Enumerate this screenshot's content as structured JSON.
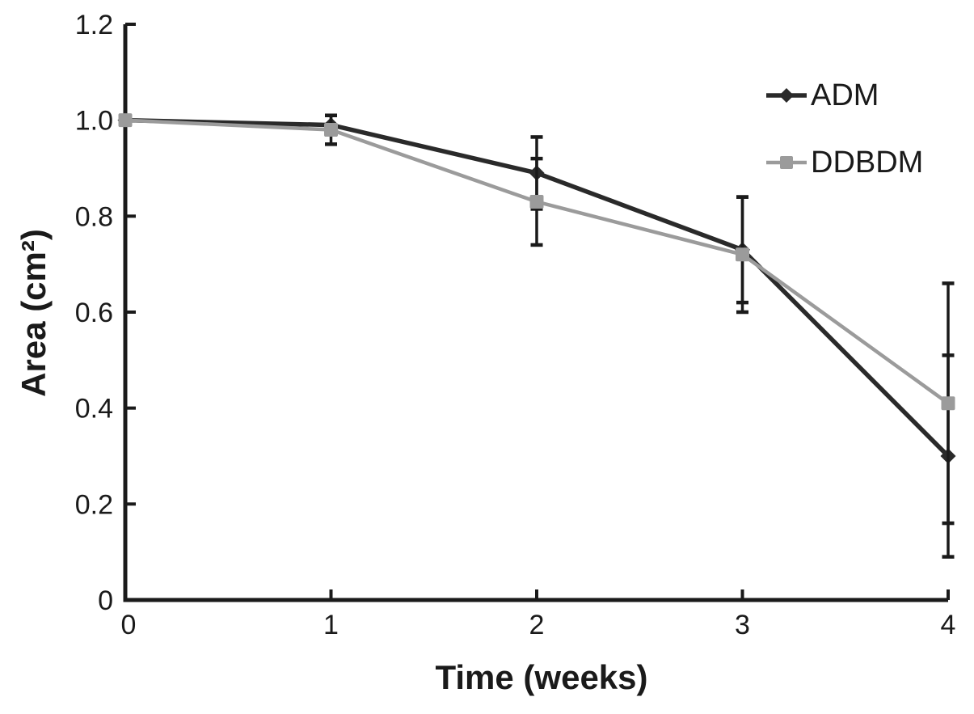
{
  "figure": {
    "background": "#ffffff",
    "text_color": "#1a1a1a"
  },
  "chart_data": {
    "type": "line",
    "title": "",
    "xlabel": "Time (weeks)",
    "ylabel": "Area (cm²)",
    "xlim": [
      0,
      4
    ],
    "ylim": [
      0,
      1.2
    ],
    "x_ticks": [
      "0",
      "1",
      "2",
      "3",
      "4"
    ],
    "y_ticks": [
      "0",
      "0.2",
      "0.4",
      "0.6",
      "0.8",
      "1.0",
      "1.2"
    ],
    "grid": false,
    "legend_position": "top-right",
    "error_bar_color": "#1a1a1a",
    "x": [
      0,
      1,
      2,
      3,
      4
    ],
    "series": [
      {
        "name": "ADM",
        "color": "#2a2a2a",
        "marker": "diamond",
        "line_width": 5.5,
        "values": [
          1.0,
          0.99,
          0.89,
          0.73,
          0.3
        ],
        "errors": [
          0,
          0.02,
          0.075,
          0.11,
          0.21
        ]
      },
      {
        "name": "DDBDM",
        "color": "#9b9b9b",
        "marker": "square",
        "line_width": 4.5,
        "values": [
          1.0,
          0.98,
          0.83,
          0.72,
          0.41
        ],
        "errors": [
          0,
          0.03,
          0.09,
          0.12,
          0.25
        ]
      }
    ]
  }
}
